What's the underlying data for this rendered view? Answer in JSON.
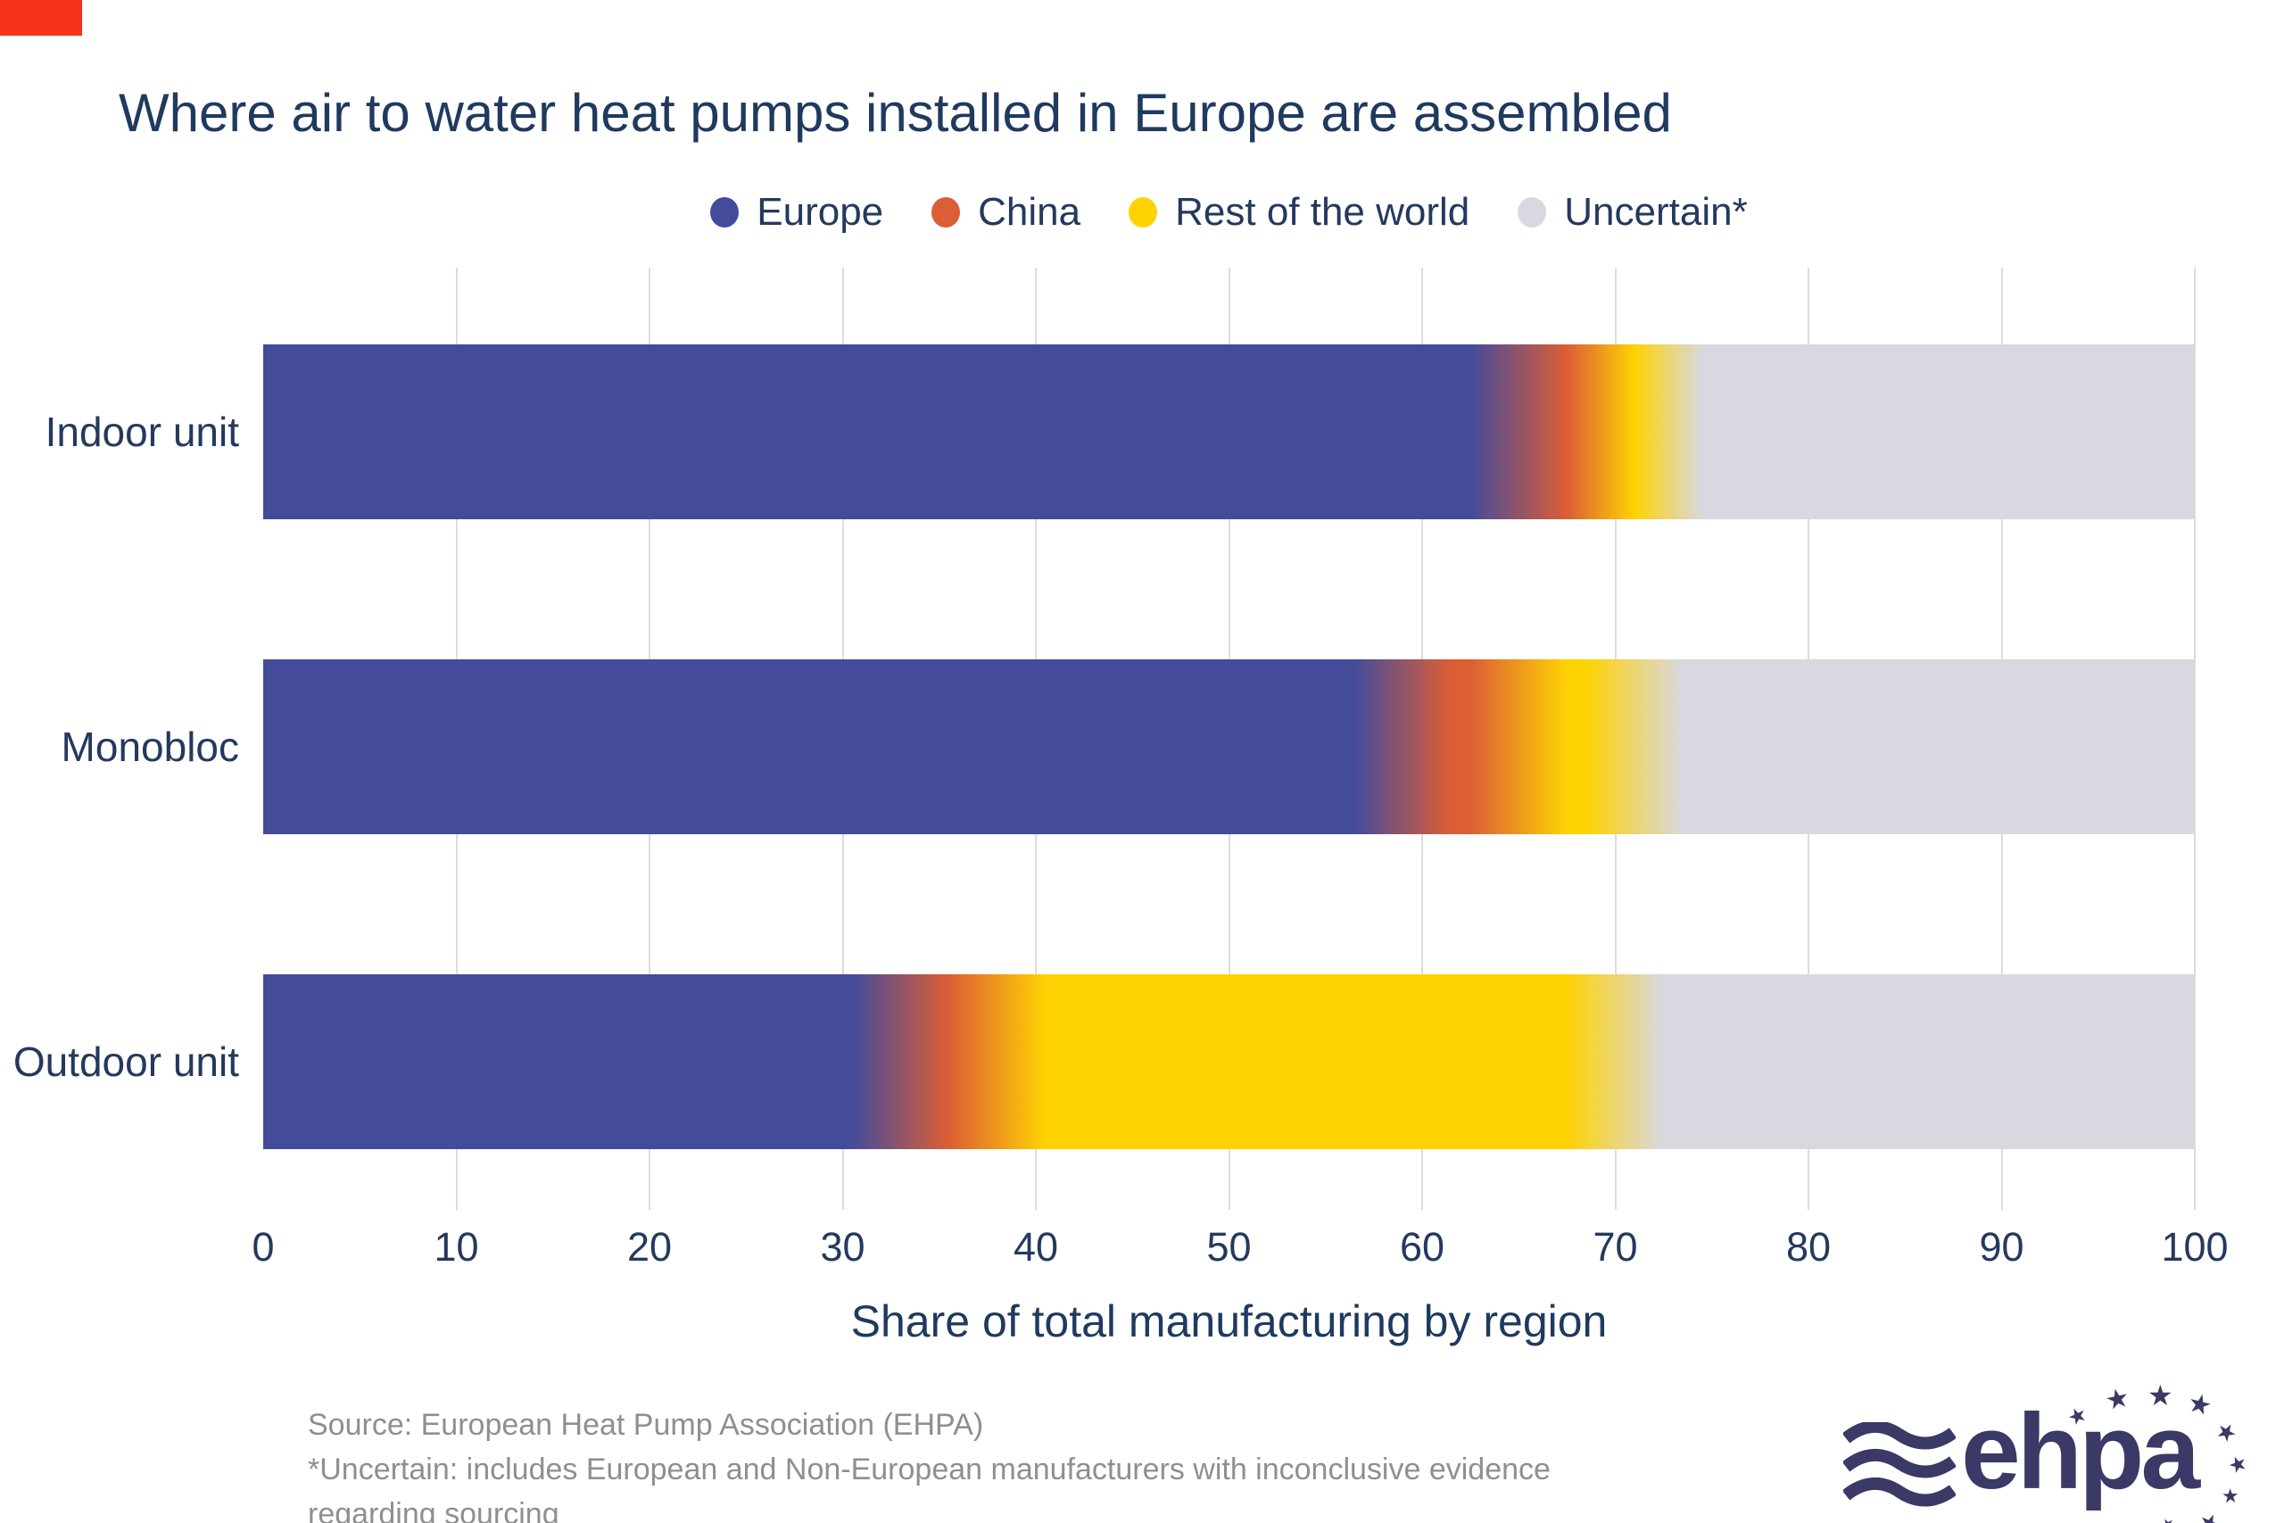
{
  "brand": {
    "corner_mark_color": "#F5331C",
    "logo_text": "ehpa",
    "logo_color": "#3B3966",
    "star_glyph": "★"
  },
  "chart_data": {
    "type": "bar",
    "orientation": "horizontal",
    "stacked": true,
    "title": "Where air to water heat pumps installed in Europe are assembled",
    "categories": [
      "Indoor unit",
      "Monobloc",
      "Outdoor unit"
    ],
    "series": [
      {
        "name": "Europe",
        "color": "#444B9B",
        "values": [
          65,
          59,
          33
        ]
      },
      {
        "name": "China",
        "color": "#DC5E35",
        "values": [
          5,
          6,
          5
        ]
      },
      {
        "name": "Rest of the world",
        "color": "#FFD203",
        "values": [
          2,
          6,
          32
        ]
      },
      {
        "name": "Uncertain*",
        "color": "#D9D8E0",
        "values": [
          28,
          29,
          30
        ]
      }
    ],
    "xlabel": "Share of total manufacturing by region",
    "xlim": [
      0,
      100
    ],
    "xticks": [
      0,
      10,
      20,
      30,
      40,
      50,
      60,
      70,
      80,
      90,
      100
    ],
    "grid": "vertical",
    "gridline_color": "#DCDCDC",
    "legend_position": "top",
    "segment_blend_pct": 2.5,
    "text_color": "#24395E"
  },
  "footer": {
    "lines": [
      "Source: European Heat Pump Association (EHPA)",
      "*Uncertain: includes European and Non-European manufacturers with inconclusive evidence",
      "regarding sourcing"
    ]
  }
}
